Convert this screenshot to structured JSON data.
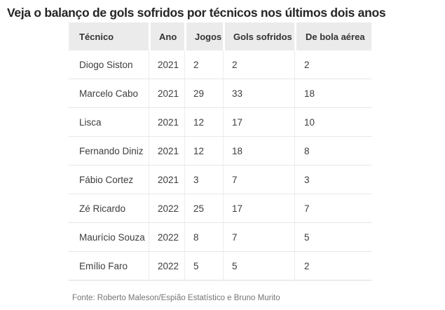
{
  "title": "Veja o balanço de gols sofridos por técnicos nos últimos dois anos",
  "source": "Fonte: Roberto Maleson/Espião Estatístico e Bruno Murito",
  "colors": {
    "header_bg": "#ebebeb",
    "title_text": "#252525",
    "header_text": "#333333",
    "cell_text": "#3d3d3d",
    "source_text": "#757575",
    "row_divider": "#e7e7e7",
    "column_divider": "#ededed"
  },
  "chart_data": {
    "type": "table",
    "title": "Veja o balanço de gols sofridos por técnicos nos últimos dois anos",
    "columns": [
      "Técnico",
      "Ano",
      "Jogos",
      "Gols sofridos",
      "De bola aérea"
    ],
    "rows": [
      [
        "Diogo Siston",
        "2021",
        "2",
        "2",
        "2"
      ],
      [
        "Marcelo Cabo",
        "2021",
        "29",
        "33",
        "18"
      ],
      [
        "Lisca",
        "2021",
        "12",
        "17",
        "10"
      ],
      [
        "Fernando Diniz",
        "2021",
        "12",
        "18",
        "8"
      ],
      [
        "Fábio Cortez",
        "2021",
        "3",
        "7",
        "3"
      ],
      [
        "Zé Ricardo",
        "2022",
        "25",
        "17",
        "7"
      ],
      [
        "Maurício Souza",
        "2022",
        "8",
        "7",
        "5"
      ],
      [
        "Emílio Faro",
        "2022",
        "5",
        "5",
        "2"
      ]
    ]
  }
}
